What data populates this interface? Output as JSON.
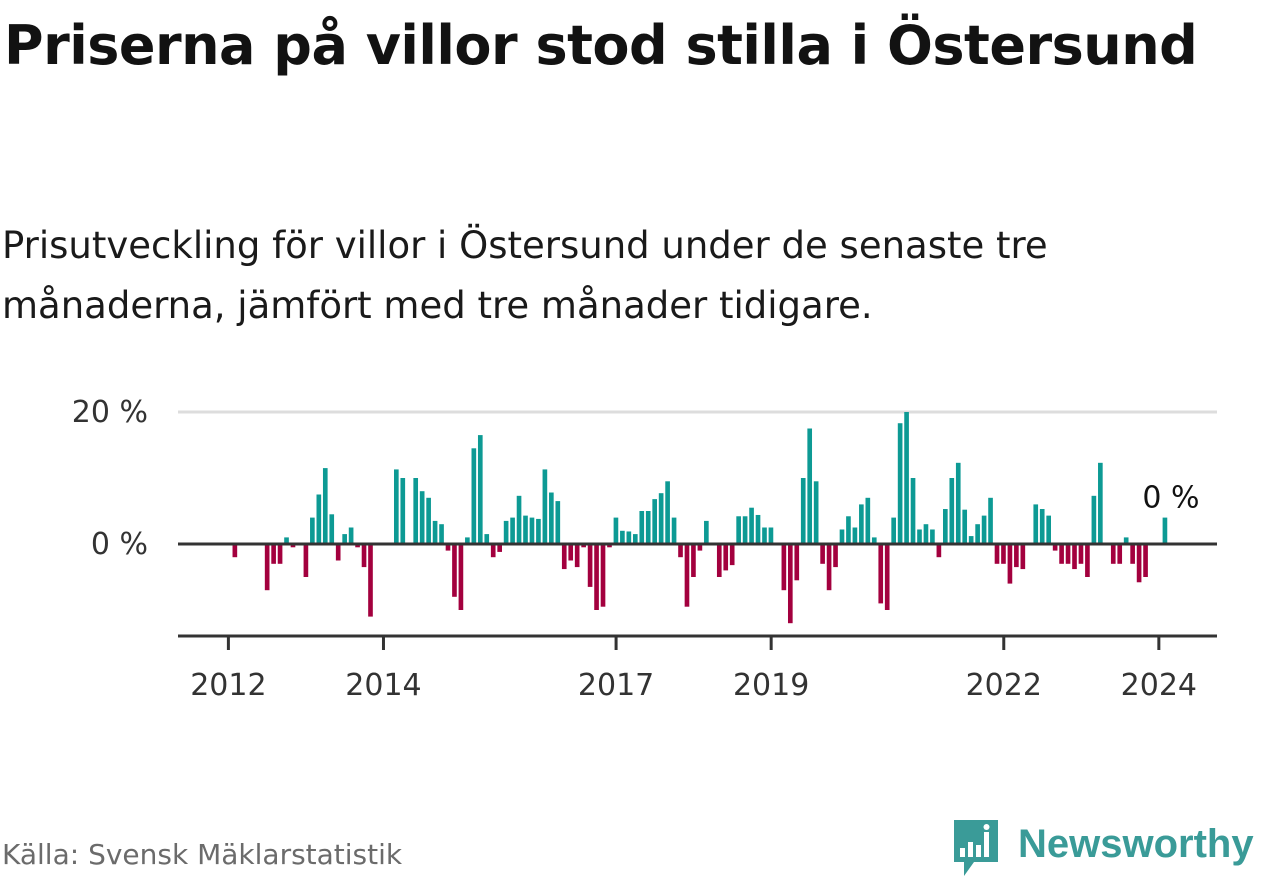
{
  "title": "Priserna på villor stod stilla i Östersund",
  "subtitle": "Prisutveckling för villor i Östersund under de senaste tre månaderna, jämfört med tre månader tidigare.",
  "source": "Källa: Svensk Mäklarstatistik",
  "brand": "Newsworthy",
  "colors": {
    "positive": "#0d9a94",
    "negative": "#a3003e",
    "axis": "#333333",
    "grid": "#dddddd",
    "brand": "#3a9b98"
  },
  "chart_data": {
    "type": "bar",
    "title": "Priserna på villor stod stilla i Östersund",
    "ylabel": "",
    "ylim": [
      -15,
      20
    ],
    "y_ticks": [
      {
        "value": 0,
        "label": "0 %"
      },
      {
        "value": 20,
        "label": "20 %"
      }
    ],
    "x_ticks": [
      {
        "value": 2012,
        "label": "2012"
      },
      {
        "value": 2014,
        "label": "2014"
      },
      {
        "value": 2017,
        "label": "2017"
      },
      {
        "value": 2019,
        "label": "2019"
      },
      {
        "value": 2022,
        "label": "2022"
      },
      {
        "value": 2024,
        "label": "2024"
      }
    ],
    "x_range": [
      2011.35,
      2024.75
    ],
    "start": 2012,
    "bar_step_years": 0.0833,
    "end_label": "0 %",
    "values": [
      0,
      -2,
      0,
      0,
      0,
      0,
      -7,
      -3,
      -3,
      1,
      -0.5,
      0,
      -5,
      4,
      7.5,
      11.5,
      4.5,
      -2.5,
      1.5,
      2.5,
      -0.5,
      -3.5,
      -11,
      0,
      0,
      0,
      11.3,
      10,
      0,
      10,
      8,
      7,
      3.5,
      3,
      -1,
      -8,
      -10,
      1,
      14.5,
      16.5,
      1.5,
      -2,
      -1.2,
      3.5,
      4,
      7.3,
      4.3,
      4,
      3.8,
      11.3,
      7.8,
      6.5,
      -3.8,
      -2.5,
      -3.5,
      -0.5,
      -6.5,
      -10,
      -9.5,
      -0.5,
      4,
      2,
      1.9,
      1.5,
      5,
      5,
      6.8,
      7.7,
      9.5,
      4,
      -2,
      -9.5,
      -5,
      -1,
      3.5,
      0,
      -5,
      -4,
      -3.2,
      4.2,
      4.2,
      5.5,
      4.4,
      2.5,
      2.5,
      0,
      -7,
      -12,
      -5.5,
      10,
      17.5,
      9.5,
      -3,
      -7,
      -3.5,
      2.2,
      4.2,
      2.5,
      6,
      7,
      1,
      -9,
      -10,
      4,
      18.3,
      20,
      10,
      2.2,
      3,
      2.2,
      -2,
      5.3,
      10,
      12.3,
      5.2,
      1.2,
      3,
      4.3,
      7,
      -3,
      -3,
      -6,
      -3.5,
      -3.8,
      0,
      6,
      5.3,
      4.3,
      -1,
      -3,
      -3,
      -3.8,
      -3,
      -5,
      7.3,
      12.3,
      0,
      -3,
      -3,
      1,
      -3,
      -5.8,
      -5,
      0,
      0,
      4
    ]
  }
}
